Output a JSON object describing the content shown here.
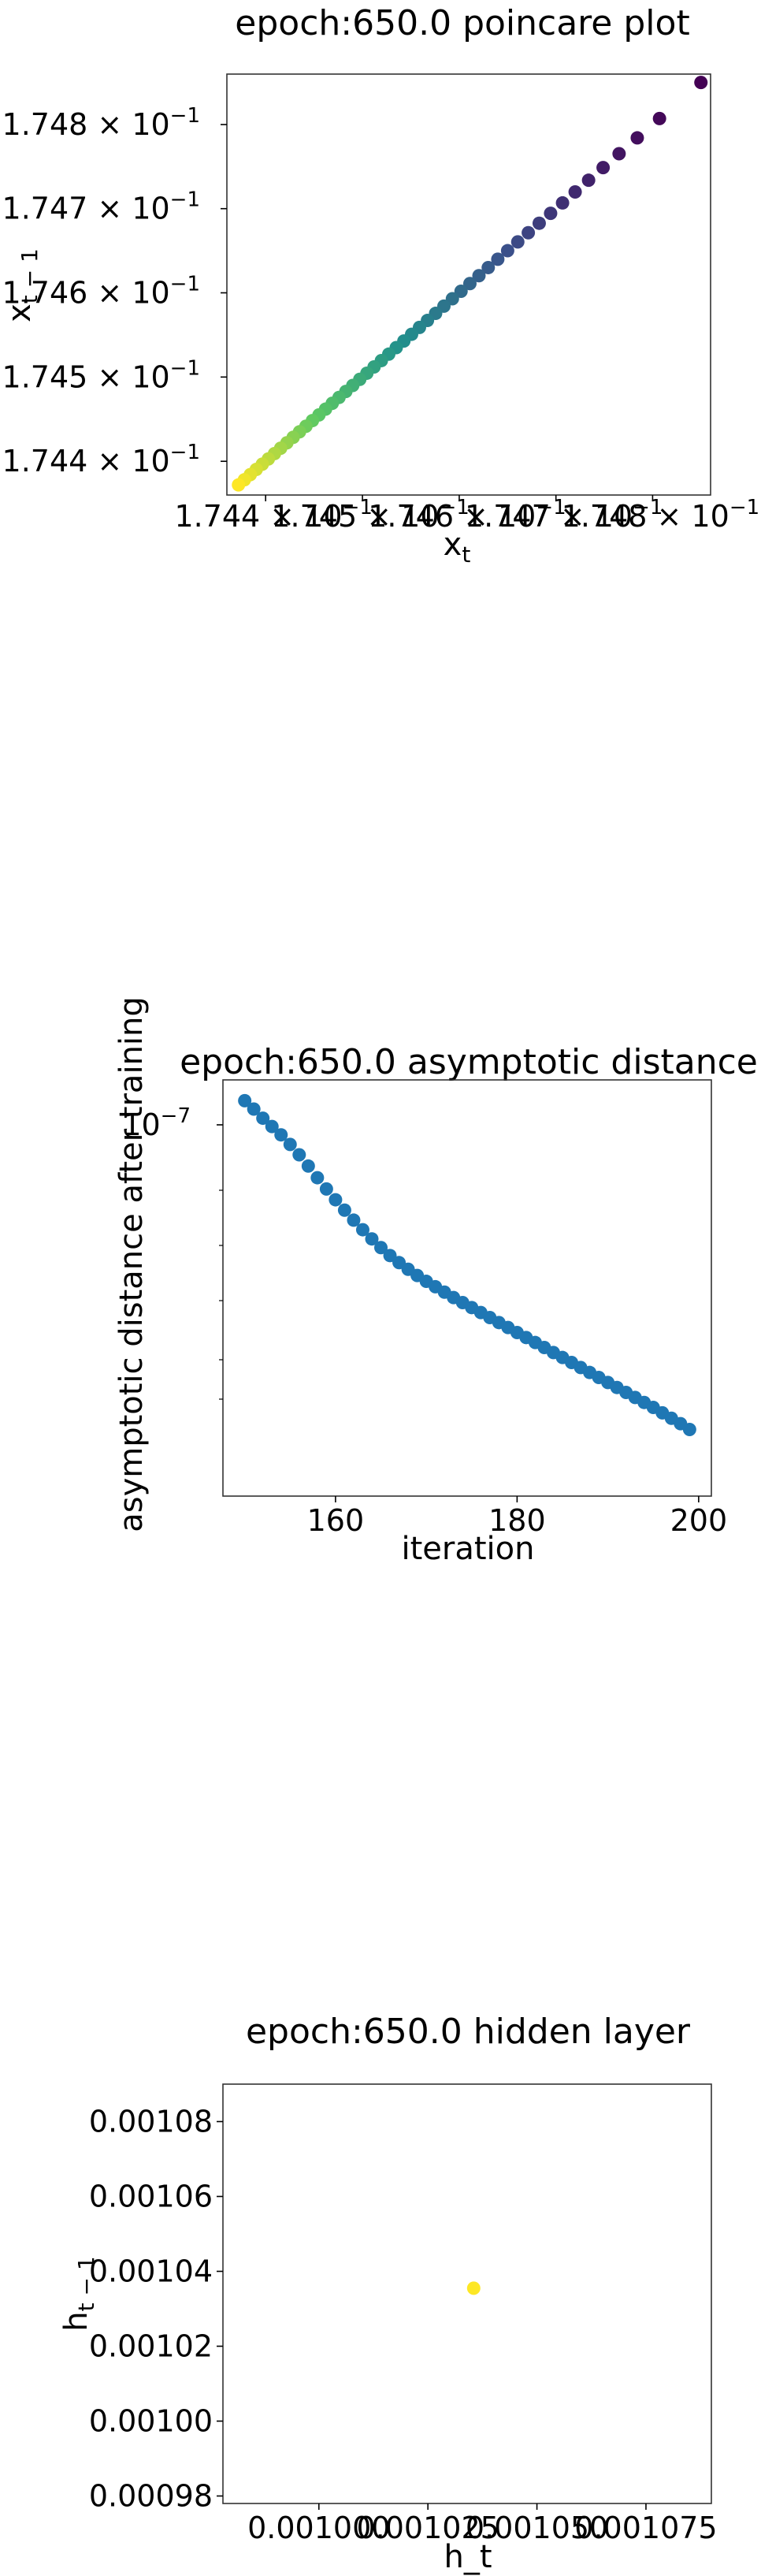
{
  "chart_data": [
    {
      "type": "scatter",
      "title": "epoch:650.0 poincare plot",
      "xlabel": "x_t",
      "ylabel": "x_{t-1}",
      "xscale": "log",
      "yscale": "log",
      "xlim": [
        0.17436,
        0.17486
      ],
      "ylim": [
        0.17436,
        0.17486
      ],
      "xticks": [
        {
          "value": 0.1744,
          "label": "1.744 × 10"
        },
        {
          "value": 0.1745,
          "label": "1.745 × 10"
        },
        {
          "value": 0.1746,
          "label": "1.746 × 10"
        },
        {
          "value": 0.1747,
          "label": "1.747 × 10"
        },
        {
          "value": 0.1748,
          "label": "1.748 × 10"
        }
      ],
      "yticks": [
        {
          "value": 0.1744,
          "label": "1.744 × 10"
        },
        {
          "value": 0.1745,
          "label": "1.745 × 10"
        },
        {
          "value": 0.1746,
          "label": "1.746 × 10"
        },
        {
          "value": 0.1747,
          "label": "1.747 × 10"
        },
        {
          "value": 0.1748,
          "label": "1.748 × 10"
        }
      ],
      "tick_exponent": "−1",
      "x_start": 0.17485,
      "x_end": 0.174372,
      "n_points": 50,
      "colormap": [
        "#440154",
        "#3b528b",
        "#21918c",
        "#5ec962",
        "#fde725"
      ],
      "grid": false
    },
    {
      "type": "scatter",
      "title": "epoch:650.0 asymptotic distance",
      "xlabel": "iteration",
      "ylabel": "asymptotic distance after training",
      "yscale": "log",
      "xlim": [
        147.6,
        201.4
      ],
      "xticks": [
        160,
        180,
        200
      ],
      "ytick_label": "10",
      "ytick_exponent": "−7",
      "x": [
        150,
        151,
        152,
        153,
        154,
        155,
        156,
        157,
        158,
        159,
        160,
        161,
        162,
        163,
        164,
        165,
        166,
        167,
        168,
        169,
        170,
        171,
        172,
        173,
        174,
        175,
        176,
        177,
        178,
        179,
        180,
        181,
        182,
        183,
        184,
        185,
        186,
        187,
        188,
        189,
        190,
        191,
        192,
        193,
        194,
        195,
        196,
        197,
        198,
        199
      ],
      "y_norm": [
        0.95,
        0.93,
        0.908,
        0.888,
        0.868,
        0.845,
        0.82,
        0.793,
        0.765,
        0.738,
        0.712,
        0.687,
        0.663,
        0.64,
        0.618,
        0.597,
        0.578,
        0.561,
        0.545,
        0.53,
        0.516,
        0.503,
        0.49,
        0.477,
        0.465,
        0.453,
        0.441,
        0.429,
        0.417,
        0.405,
        0.393,
        0.381,
        0.369,
        0.357,
        0.345,
        0.333,
        0.321,
        0.309,
        0.297,
        0.285,
        0.273,
        0.261,
        0.249,
        0.237,
        0.225,
        0.213,
        0.2,
        0.187,
        0.174,
        0.16
      ],
      "color": "#1f77b4",
      "grid": false
    },
    {
      "type": "scatter",
      "title": "epoch:650.0 hidden layer",
      "xlabel": "h_t",
      "ylabel": "h_{t-1}",
      "xlim": [
        0.000978,
        0.00109
      ],
      "ylim": [
        0.000978,
        0.00109
      ],
      "xticks": [
        {
          "value": 0.001,
          "label": "0.001000"
        },
        {
          "value": 0.001025,
          "label": "0.001025"
        },
        {
          "value": 0.00105,
          "label": "0.001050"
        },
        {
          "value": 0.001075,
          "label": "0.001075"
        }
      ],
      "yticks": [
        {
          "value": 0.00098,
          "label": "0.00098"
        },
        {
          "value": 0.001,
          "label": "0.00100"
        },
        {
          "value": 0.00102,
          "label": "0.00102"
        },
        {
          "value": 0.00104,
          "label": "0.00104"
        },
        {
          "value": 0.00106,
          "label": "0.00106"
        },
        {
          "value": 0.00108,
          "label": "0.00108"
        }
      ],
      "points": [
        [
          0.0010355,
          0.0010355
        ]
      ],
      "color": "#fde725",
      "grid": false
    }
  ]
}
